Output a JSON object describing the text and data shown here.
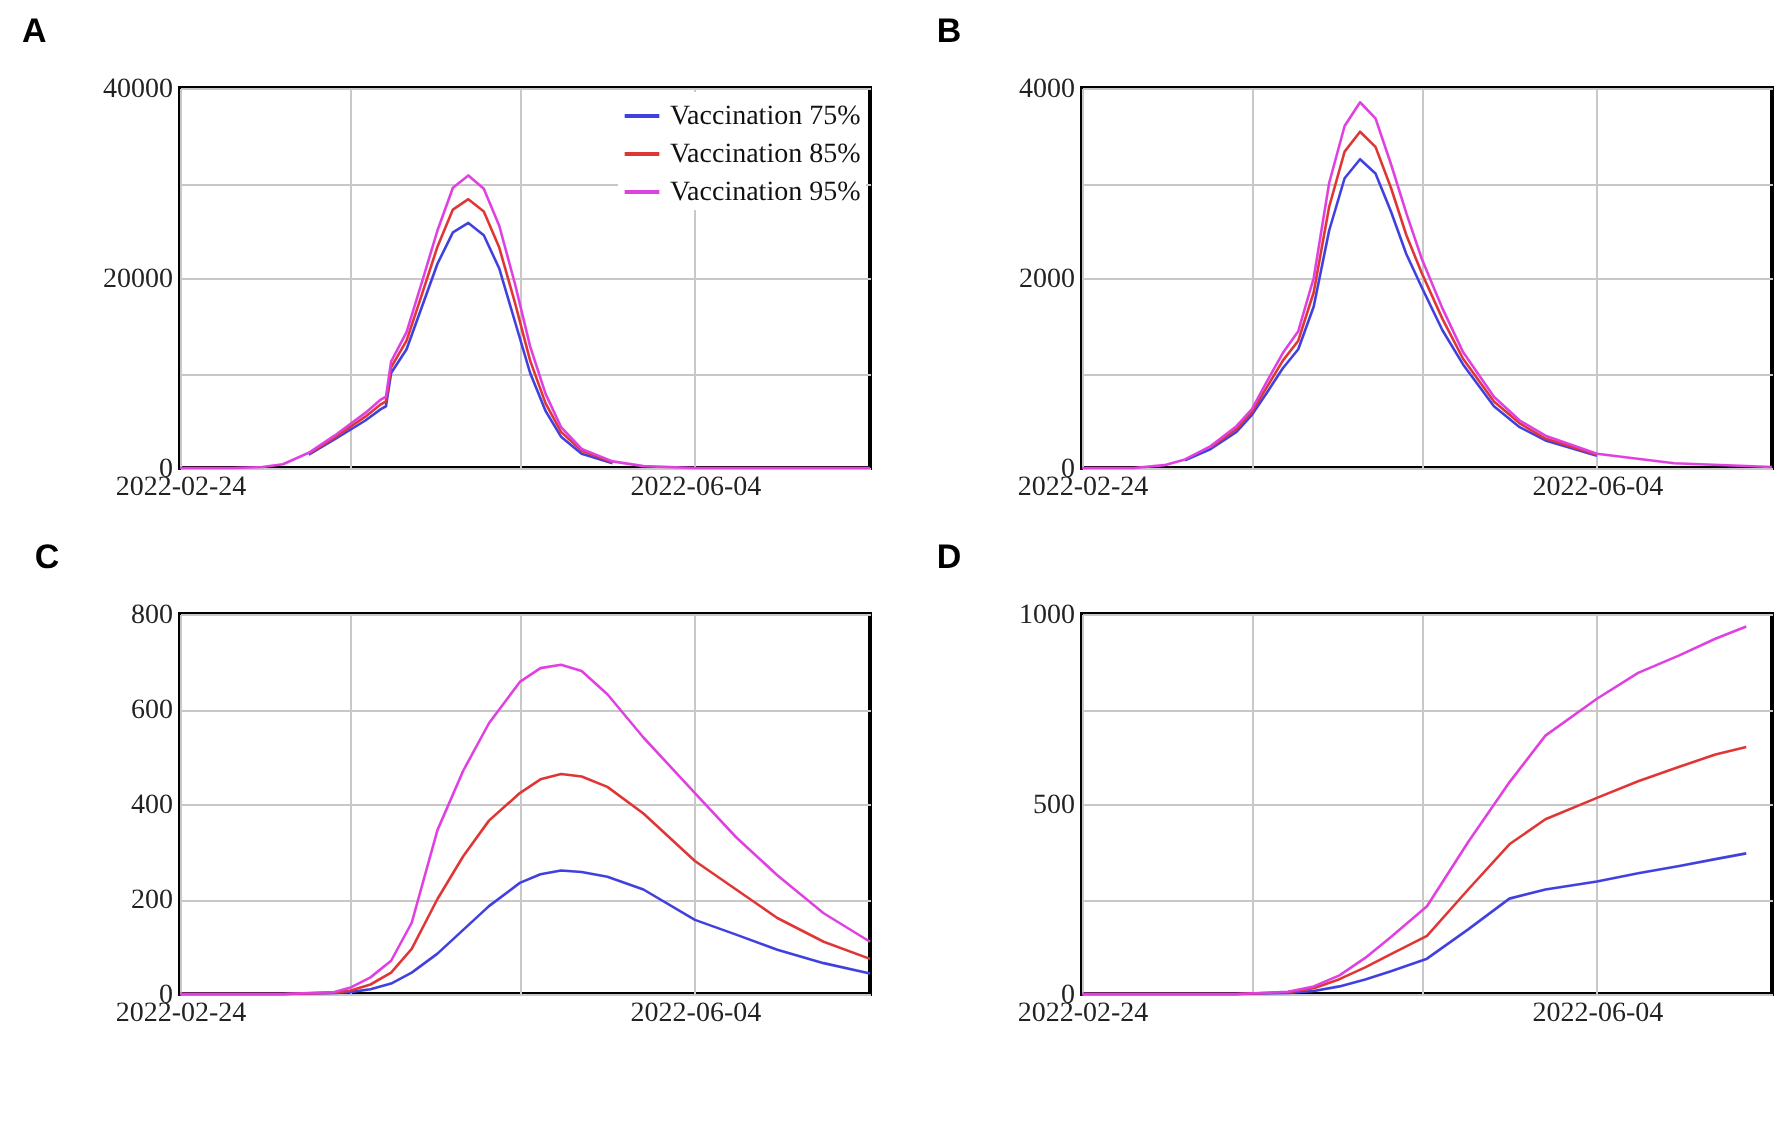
{
  "chart_data": [
    {
      "type": "line",
      "title": "A",
      "legend": "top right",
      "grid": true,
      "xlim": [
        "2022-02-24",
        "2022-07-08"
      ],
      "xticks": [
        "2022-02-24",
        {
          "value": "2022-03-29",
          "label": null
        },
        {
          "value": "2022-05-01",
          "label": null
        },
        "2022-06-04"
      ],
      "ylim": [
        0,
        40000
      ],
      "yticks": [
        0,
        {
          "value": 10000,
          "label": null
        },
        20000,
        {
          "value": 30000,
          "label": null
        },
        40000
      ],
      "x": [
        "2022-02-24",
        "2022-03-06",
        "2022-03-12",
        "2022-03-16",
        "2022-03-21",
        "2022-03-26",
        "2022-03-29",
        "2022-04-01",
        "2022-04-04",
        "2022-04-05",
        "2022-04-06",
        "2022-04-09",
        "2022-04-12",
        "2022-04-15",
        "2022-04-18",
        "2022-04-21",
        "2022-04-24",
        "2022-04-27",
        "2022-04-30",
        "2022-05-03",
        "2022-05-06",
        "2022-05-09",
        "2022-05-13",
        "2022-05-19",
        "2022-05-25",
        "2022-06-04",
        "2022-06-19",
        "2022-07-08"
      ],
      "series": [
        {
          "name": "Vaccination 75%",
          "color": "#4040e0",
          "values": [
            null,
            null,
            null,
            null,
            1400,
            3000,
            4000,
            5000,
            6200,
            6500,
            10000,
            12500,
            17000,
            21500,
            24800,
            25800,
            24500,
            21000,
            15500,
            10000,
            6000,
            3300,
            1500,
            500,
            null,
            null,
            null,
            null
          ]
        },
        {
          "name": "Vaccination 85%",
          "color": "#e03535",
          "values": [
            null,
            null,
            null,
            null,
            1500,
            3200,
            4300,
            5400,
            6700,
            7000,
            10600,
            13400,
            18300,
            23300,
            27200,
            28300,
            27000,
            23200,
            17500,
            11300,
            6800,
            3800,
            1800,
            600,
            null,
            null,
            null,
            null
          ]
        },
        {
          "name": "Vaccination 95%",
          "color": "#e040e0",
          "values": [
            0,
            0,
            100,
            400,
            1600,
            3400,
            4600,
            5800,
            7200,
            7500,
            11200,
            14300,
            19600,
            25000,
            29500,
            30800,
            29400,
            25500,
            19500,
            12800,
            7800,
            4300,
            2000,
            700,
            200,
            0,
            0,
            0
          ]
        }
      ]
    },
    {
      "type": "line",
      "title": "B",
      "grid": true,
      "xlim": [
        "2022-02-24",
        "2022-07-08"
      ],
      "xticks": [
        "2022-02-24",
        {
          "value": "2022-03-29",
          "label": null
        },
        {
          "value": "2022-05-01",
          "label": null
        },
        "2022-06-04"
      ],
      "ylim": [
        0,
        4000
      ],
      "yticks": [
        0,
        {
          "value": 1000,
          "label": null
        },
        2000,
        {
          "value": 3000,
          "label": null
        },
        4000
      ],
      "x": [
        "2022-02-24",
        "2022-03-06",
        "2022-03-12",
        "2022-03-16",
        "2022-03-21",
        "2022-03-26",
        "2022-03-29",
        "2022-04-01",
        "2022-04-04",
        "2022-04-07",
        "2022-04-10",
        "2022-04-13",
        "2022-04-16",
        "2022-04-19",
        "2022-04-22",
        "2022-04-25",
        "2022-04-28",
        "2022-05-01",
        "2022-05-05",
        "2022-05-09",
        "2022-05-15",
        "2022-05-20",
        "2022-05-25",
        "2022-06-04",
        "2022-06-19",
        "2022-07-08"
      ],
      "series": [
        {
          "color": "#4040e0",
          "values": [
            null,
            null,
            null,
            80,
            200,
            380,
            560,
            800,
            1050,
            1250,
            1700,
            2500,
            3050,
            3250,
            3100,
            2700,
            2250,
            1900,
            1450,
            1090,
            650,
            430,
            290,
            130,
            null,
            null
          ]
        },
        {
          "color": "#e03535",
          "values": [
            null,
            null,
            null,
            null,
            220,
            410,
            590,
            860,
            1130,
            1340,
            1850,
            2750,
            3330,
            3540,
            3380,
            2950,
            2450,
            2050,
            1570,
            1150,
            700,
            470,
            310,
            140,
            null,
            null
          ]
        },
        {
          "color": "#e040e0",
          "values": [
            0,
            0,
            30,
            90,
            230,
            440,
            620,
            920,
            1210,
            1440,
            2000,
            3000,
            3600,
            3850,
            3680,
            3200,
            2680,
            2200,
            1680,
            1220,
            750,
            500,
            340,
            150,
            50,
            10
          ]
        }
      ]
    },
    {
      "type": "line",
      "title": "C",
      "grid": true,
      "xlim": [
        "2022-02-24",
        "2022-07-08"
      ],
      "xticks": [
        "2022-02-24",
        {
          "value": "2022-03-29",
          "label": null
        },
        {
          "value": "2022-05-01",
          "label": null
        },
        "2022-06-04"
      ],
      "ylim": [
        0,
        800
      ],
      "yticks": [
        0,
        200,
        400,
        600,
        800
      ],
      "x": [
        "2022-02-24",
        "2022-03-16",
        "2022-03-26",
        "2022-03-29",
        "2022-04-02",
        "2022-04-06",
        "2022-04-10",
        "2022-04-15",
        "2022-04-20",
        "2022-04-25",
        "2022-05-01",
        "2022-05-05",
        "2022-05-09",
        "2022-05-13",
        "2022-05-18",
        "2022-05-25",
        "2022-06-04",
        "2022-06-12",
        "2022-06-20",
        "2022-06-29",
        "2022-07-08"
      ],
      "series": [
        {
          "color": "#4040e0",
          "values": [
            0,
            0,
            2,
            4,
            10,
            22,
            45,
            85,
            135,
            185,
            234,
            252,
            260,
            257,
            247,
            220,
            156,
            125,
            93,
            65,
            43
          ]
        },
        {
          "color": "#e03535",
          "values": [
            0,
            0,
            3,
            7,
            20,
            45,
            95,
            200,
            290,
            365,
            423,
            452,
            463,
            458,
            436,
            380,
            280,
            220,
            160,
            110,
            74
          ]
        },
        {
          "color": "#e040e0",
          "values": [
            0,
            0,
            4,
            13,
            35,
            70,
            150,
            345,
            470,
            570,
            657,
            686,
            693,
            680,
            631,
            540,
            423,
            330,
            250,
            170,
            110
          ]
        }
      ]
    },
    {
      "type": "line",
      "title": "D",
      "grid": true,
      "xlim": [
        "2022-02-24",
        "2022-07-08"
      ],
      "xticks": [
        "2022-02-24",
        {
          "value": "2022-03-29",
          "label": null
        },
        {
          "value": "2022-05-01",
          "label": null
        },
        "2022-06-04"
      ],
      "ylim": [
        0,
        1000
      ],
      "yticks": [
        0,
        {
          "value": 250,
          "label": null
        },
        500,
        {
          "value": 750,
          "label": null
        },
        1000
      ],
      "x": [
        "2022-02-24",
        "2022-03-26",
        "2022-04-05",
        "2022-04-10",
        "2022-04-15",
        "2022-04-20",
        "2022-04-25",
        "2022-05-02",
        "2022-05-10",
        "2022-05-18",
        "2022-05-25",
        "2022-06-04",
        "2022-06-12",
        "2022-06-20",
        "2022-06-27",
        "2022-07-03"
      ],
      "series": [
        {
          "color": "#4040e0",
          "values": [
            0,
            0,
            3,
            8,
            20,
            38,
            60,
            93,
            170,
            251,
            275,
            296,
            318,
            337,
            355,
            370
          ]
        },
        {
          "color": "#e03535",
          "values": [
            0,
            0,
            5,
            15,
            39,
            70,
            105,
            153,
            275,
            394,
            460,
            516,
            560,
            598,
            630,
            650
          ]
        },
        {
          "color": "#e040e0",
          "values": [
            0,
            0,
            6,
            20,
            49,
            95,
            150,
            231,
            400,
            557,
            680,
            777,
            845,
            891,
            935,
            967
          ]
        }
      ]
    }
  ]
}
